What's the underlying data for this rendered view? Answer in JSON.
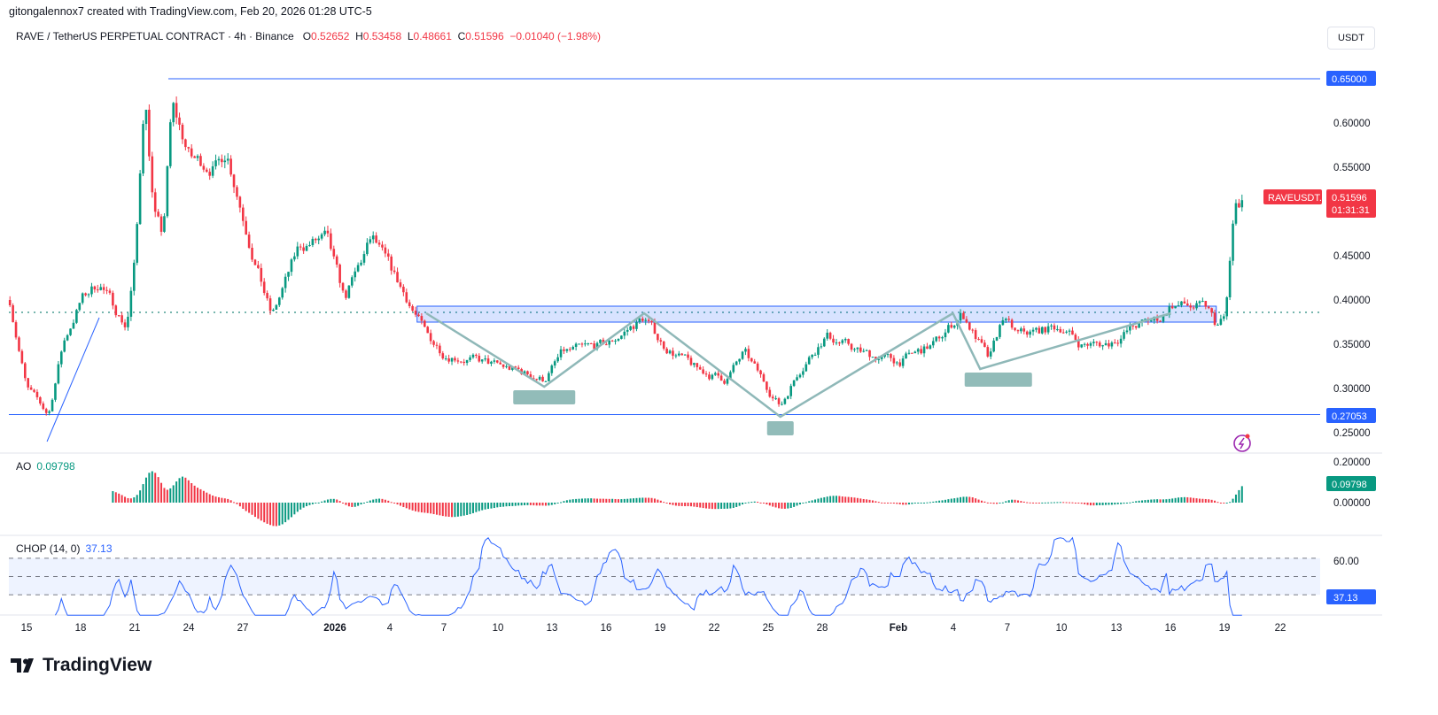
{
  "attribution": "gitongalennox7 created with TradingView.com, Feb 20, 2026 01:28 UTC-5",
  "symbol": {
    "title": "RAVE / TetherUS PERPETUAL CONTRACT · 4h · Binance",
    "o_label": "O",
    "open": "0.52652",
    "h_label": "H",
    "high": "0.53458",
    "l_label": "L",
    "low": "0.48661",
    "c_label": "C",
    "close": "0.51596",
    "change": "−0.01040 (−1.98%)"
  },
  "currency_button": "USDT",
  "price_axis": {
    "ticks": [
      "0.60000",
      "0.55000",
      "0.45000",
      "0.40000",
      "0.35000",
      "0.30000",
      "0.25000"
    ],
    "level_high": "0.65000",
    "level_low": "0.27053",
    "ticker_tag": "RAVEUSDT.P",
    "last_price": "0.51596",
    "countdown": "01:31:31"
  },
  "ao": {
    "label": "AO",
    "value": "0.09798",
    "ticks": [
      "0.20000",
      "0.00000"
    ]
  },
  "chop": {
    "label": "CHOP (14, 0)",
    "value": "37.13",
    "ticks": [
      "60.00"
    ]
  },
  "time_axis": [
    "15",
    "18",
    "21",
    "24",
    "27",
    "2026",
    "4",
    "7",
    "10",
    "13",
    "16",
    "19",
    "22",
    "25",
    "28",
    "Feb",
    "4",
    "7",
    "10",
    "13",
    "16",
    "19",
    "22"
  ],
  "logo_text": "TradingView",
  "colors": {
    "up": "#089981",
    "down": "#f23645",
    "line": "#2962ff",
    "zone": "#2962ff",
    "pattern": "#8fb8b8"
  },
  "chart_data": {
    "type": "candlestick",
    "interval": "4h",
    "ylim": [
      0.23,
      0.67
    ],
    "xlim": [
      "2025-12-14",
      "2026-02-23"
    ],
    "price_path": [
      [
        "2025-12-14T02:00",
        0.4
      ],
      [
        "2025-12-15T00:00",
        0.3
      ],
      [
        "2025-12-16T05:00",
        0.27
      ],
      [
        "2025-12-17T00:00",
        0.35
      ],
      [
        "2025-12-18T00:00",
        0.4
      ],
      [
        "2025-12-19T00:00",
        0.42
      ],
      [
        "2025-12-20T12:00",
        0.37
      ],
      [
        "2025-12-21T00:00",
        0.45
      ],
      [
        "2025-12-21T12:00",
        0.64
      ],
      [
        "2025-12-22T00:00",
        0.5
      ],
      [
        "2025-12-22T12:00",
        0.47
      ],
      [
        "2025-12-23T00:00",
        0.62
      ],
      [
        "2025-12-24T00:00",
        0.56
      ],
      [
        "2025-12-25T12:00",
        0.55
      ],
      [
        "2025-12-26T00:00",
        0.57
      ],
      [
        "2025-12-27T12:00",
        0.45
      ],
      [
        "2025-12-28T12:00",
        0.38
      ],
      [
        "2025-12-30T00:00",
        0.46
      ],
      [
        "2025-12-31T12:00",
        0.47
      ],
      [
        "2026-01-01T12:00",
        0.4
      ],
      [
        "2026-01-03T00:00",
        0.47
      ],
      [
        "2026-01-05T00:00",
        0.4
      ],
      [
        "2026-01-06T00:00",
        0.36
      ],
      [
        "2026-01-07T00:00",
        0.34
      ],
      [
        "2026-01-09T00:00",
        0.33
      ],
      [
        "2026-01-11T00:00",
        0.32
      ],
      [
        "2026-01-12T12:00",
        0.31
      ],
      [
        "2026-01-13T12:00",
        0.34
      ],
      [
        "2026-01-16T00:00",
        0.35
      ],
      [
        "2026-01-18T00:00",
        0.38
      ],
      [
        "2026-01-19T00:00",
        0.35
      ],
      [
        "2026-01-21T00:00",
        0.32
      ],
      [
        "2026-01-22T12:00",
        0.31
      ],
      [
        "2026-01-23T12:00",
        0.34
      ],
      [
        "2026-01-25T12:00",
        0.28
      ],
      [
        "2026-01-26T12:00",
        0.32
      ],
      [
        "2026-01-28T00:00",
        0.36
      ],
      [
        "2026-01-30T00:00",
        0.34
      ],
      [
        "2026-02-01T00:00",
        0.33
      ],
      [
        "2026-02-03T00:00",
        0.35
      ],
      [
        "2026-02-04T12:00",
        0.385
      ],
      [
        "2026-02-05T12:00",
        0.35
      ],
      [
        "2026-02-06T00:00",
        0.33
      ],
      [
        "2026-02-06T18:00",
        0.38
      ],
      [
        "2026-02-07T12:00",
        0.36
      ],
      [
        "2026-02-10T00:00",
        0.37
      ],
      [
        "2026-02-11T00:00",
        0.35
      ],
      [
        "2026-02-12T12:00",
        0.35
      ],
      [
        "2026-02-14T00:00",
        0.37
      ],
      [
        "2026-02-15T12:00",
        0.38
      ],
      [
        "2026-02-16T00:00",
        0.395
      ],
      [
        "2026-02-18T00:00",
        0.39
      ],
      [
        "2026-02-18T12:00",
        0.37
      ],
      [
        "2026-02-19T00:00",
        0.38
      ],
      [
        "2026-02-19T12:00",
        0.5
      ],
      [
        "2026-02-20T00:00",
        0.516
      ]
    ],
    "horizontal_levels": [
      0.65,
      0.27053
    ],
    "dotted_level": 0.386,
    "zone": {
      "from": "2026-01-05T12:00",
      "to": "2026-02-18T12:00",
      "low": 0.375,
      "high": 0.393
    },
    "trendline": [
      [
        "2025-12-16T03:00",
        0.24
      ],
      [
        "2025-12-19T00:00",
        0.38
      ]
    ],
    "zigzag": [
      [
        "2026-01-06T00:00",
        0.385
      ],
      [
        "2026-01-12T12:00",
        0.302
      ],
      [
        "2026-01-18T00:00",
        0.385
      ],
      [
        "2026-01-25T12:00",
        0.268
      ],
      [
        "2026-02-04T00:00",
        0.385
      ],
      [
        "2026-02-05T12:00",
        0.322
      ],
      [
        "2026-02-16T00:00",
        0.385
      ]
    ],
    "pattern_markers": [
      [
        "2026-01-12T12:00",
        0.29
      ],
      [
        "2026-01-25T12:00",
        0.255
      ],
      [
        "2026-02-06T12:00",
        0.31
      ]
    ],
    "ao_ylim": [
      -0.12,
      0.2
    ],
    "chop_ylim": [
      25,
      75
    ],
    "chop_bands": [
      61.8,
      50,
      38.2
    ]
  }
}
